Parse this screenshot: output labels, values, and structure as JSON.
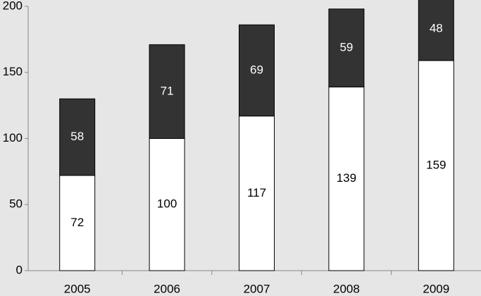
{
  "chart_data": {
    "type": "stacked-bar",
    "categories": [
      "2005",
      "2006",
      "2007",
      "2008",
      "2009"
    ],
    "series": [
      {
        "color": "#ffffff",
        "values": [
          72,
          100,
          117,
          139,
          159
        ]
      },
      {
        "color": "#333333",
        "values": [
          58,
          71,
          69,
          59,
          48
        ]
      }
    ],
    "ylim": [
      0,
      200
    ],
    "yticks": [
      0,
      50,
      100,
      150,
      200
    ],
    "grid": false
  }
}
